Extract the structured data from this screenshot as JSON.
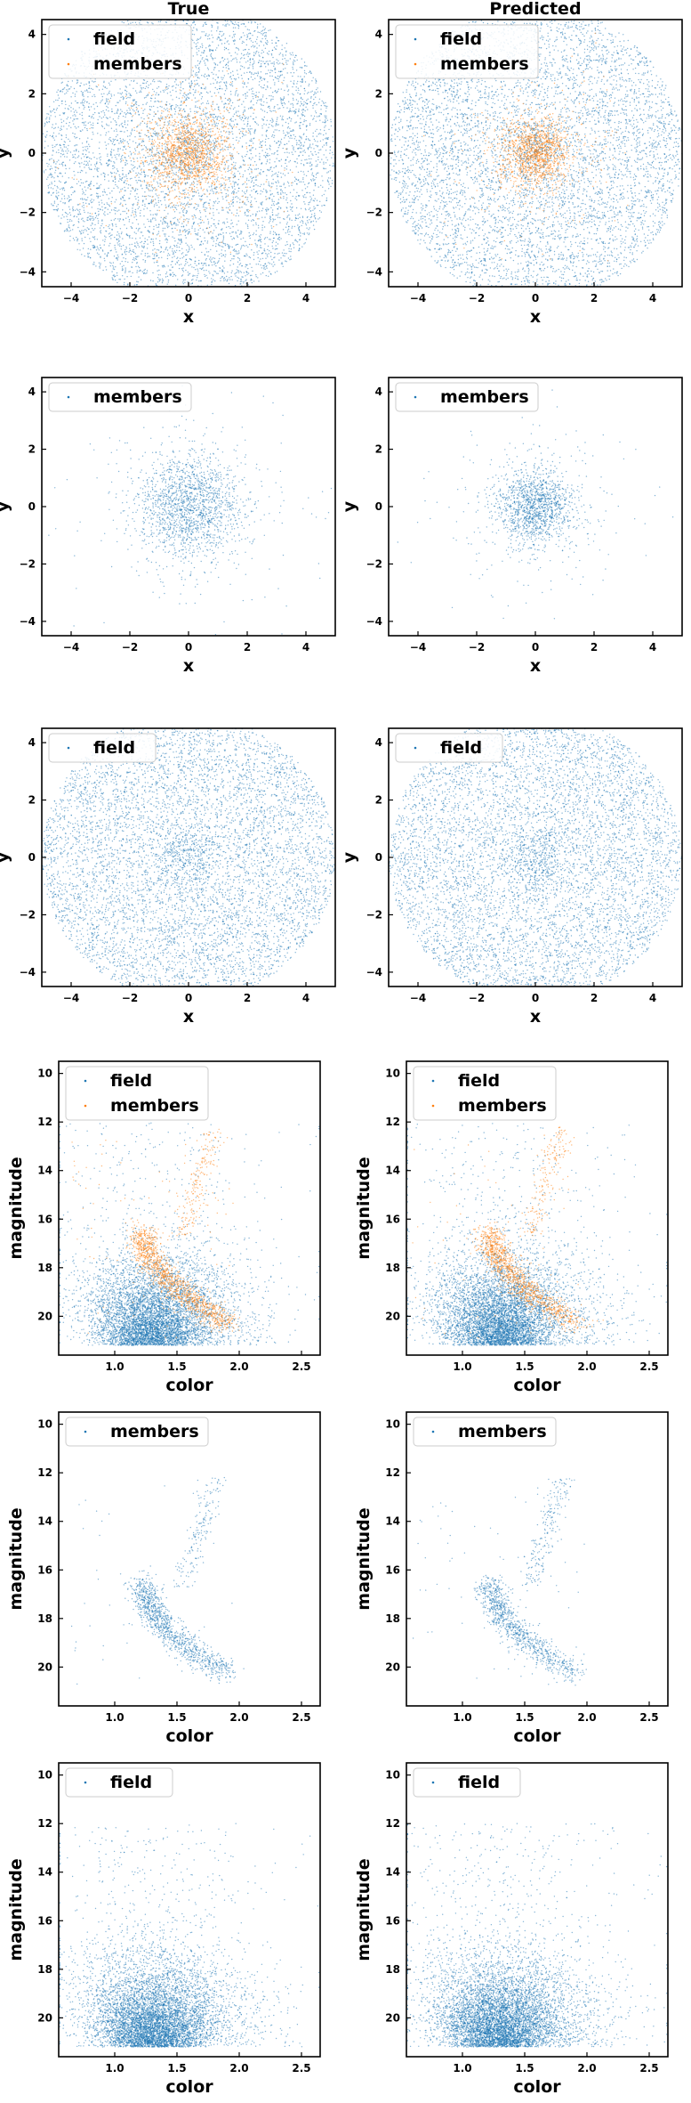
{
  "figure": {
    "column_titles": [
      "True",
      "Predicted"
    ],
    "colors": {
      "field": "#1f77b4",
      "members": "#ff7f0e"
    }
  },
  "chart_data": [
    {
      "type": "scatter",
      "title": "True",
      "xlabel": "x",
      "ylabel": "y",
      "xlim": [
        -5,
        5
      ],
      "ylim": [
        -4.5,
        4.5
      ],
      "xticks": [
        "-4",
        "-2",
        "0",
        "2",
        "4"
      ],
      "yticks": [
        "-4",
        "-2",
        "0",
        "2",
        "4"
      ],
      "legend": [
        "field",
        "members"
      ],
      "legend_position": "upper-left",
      "series": [
        {
          "name": "field",
          "color": "#1f77b4",
          "distribution": "uniform-disk",
          "center": [
            0,
            0
          ],
          "radius": 5,
          "approx_count": 6000
        },
        {
          "name": "members",
          "color": "#ff7f0e",
          "distribution": "gaussian-cluster",
          "center": [
            0,
            0
          ],
          "sigma": 0.7,
          "approx_count": 1500
        }
      ]
    },
    {
      "type": "scatter",
      "title": "Predicted",
      "xlabel": "x",
      "ylabel": "y",
      "xlim": [
        -5,
        5
      ],
      "ylim": [
        -4.5,
        4.5
      ],
      "xticks": [
        "-4",
        "-2",
        "0",
        "2",
        "4"
      ],
      "yticks": [
        "-4",
        "-2",
        "0",
        "2",
        "4"
      ],
      "legend": [
        "field",
        "members"
      ],
      "legend_position": "upper-left",
      "series": [
        {
          "name": "field",
          "color": "#1f77b4",
          "distribution": "uniform-disk",
          "center": [
            0,
            0
          ],
          "radius": 5,
          "approx_count": 6000
        },
        {
          "name": "members",
          "color": "#ff7f0e",
          "distribution": "gaussian-cluster",
          "center": [
            0,
            0
          ],
          "sigma": 0.6,
          "approx_count": 1400
        }
      ]
    },
    {
      "type": "scatter",
      "xlabel": "x",
      "ylabel": "y",
      "xlim": [
        -5,
        5
      ],
      "ylim": [
        -4.5,
        4.5
      ],
      "xticks": [
        "-4",
        "-2",
        "0",
        "2",
        "4"
      ],
      "yticks": [
        "-4",
        "-2",
        "0",
        "2",
        "4"
      ],
      "legend": [
        "members"
      ],
      "legend_position": "upper-left",
      "series": [
        {
          "name": "members",
          "color": "#1f77b4",
          "distribution": "gaussian-cluster",
          "center": [
            0,
            0
          ],
          "sigma": 0.9,
          "approx_count": 1800
        }
      ]
    },
    {
      "type": "scatter",
      "xlabel": "x",
      "ylabel": "y",
      "xlim": [
        -5,
        5
      ],
      "ylim": [
        -4.5,
        4.5
      ],
      "xticks": [
        "-4",
        "-2",
        "0",
        "2",
        "4"
      ],
      "yticks": [
        "-4",
        "-2",
        "0",
        "2",
        "4"
      ],
      "legend": [
        "members"
      ],
      "legend_position": "upper-left",
      "series": [
        {
          "name": "members",
          "color": "#1f77b4",
          "distribution": "gaussian-cluster",
          "center": [
            0,
            0
          ],
          "sigma": 0.65,
          "approx_count": 1500
        }
      ]
    },
    {
      "type": "scatter",
      "xlabel": "x",
      "ylabel": "y",
      "xlim": [
        -5,
        5
      ],
      "ylim": [
        -4.5,
        4.5
      ],
      "xticks": [
        "-4",
        "-2",
        "0",
        "2",
        "4"
      ],
      "yticks": [
        "-4",
        "-2",
        "0",
        "2",
        "4"
      ],
      "legend": [
        "field"
      ],
      "legend_position": "upper-left",
      "series": [
        {
          "name": "field",
          "color": "#1f77b4",
          "distribution": "uniform-disk",
          "center": [
            0,
            0
          ],
          "radius": 5,
          "approx_count": 6500
        }
      ]
    },
    {
      "type": "scatter",
      "xlabel": "x",
      "ylabel": "y",
      "xlim": [
        -5,
        5
      ],
      "ylim": [
        -4.5,
        4.5
      ],
      "xticks": [
        "-4",
        "-2",
        "0",
        "2",
        "4"
      ],
      "yticks": [
        "-4",
        "-2",
        "0",
        "2",
        "4"
      ],
      "legend": [
        "field"
      ],
      "legend_position": "upper-left",
      "series": [
        {
          "name": "field",
          "color": "#1f77b4",
          "distribution": "uniform-disk",
          "center": [
            0,
            0
          ],
          "radius": 5,
          "approx_count": 6500
        }
      ]
    },
    {
      "type": "scatter",
      "xlabel": "color",
      "ylabel": "magnitude",
      "xlim": [
        0.55,
        2.65
      ],
      "ylim": [
        21.6,
        9.5
      ],
      "xticks": [
        "1.0",
        "1.5",
        "2.0",
        "2.5"
      ],
      "yticks": [
        "10",
        "12",
        "14",
        "16",
        "18",
        "20"
      ],
      "legend": [
        "field",
        "members"
      ],
      "legend_position": "upper-left",
      "series": [
        {
          "name": "field",
          "color": "#1f77b4",
          "distribution": "cmd-field",
          "approx_count": 6000
        },
        {
          "name": "members",
          "color": "#ff7f0e",
          "distribution": "cmd-sequence",
          "approx_count": 1500
        }
      ]
    },
    {
      "type": "scatter",
      "xlabel": "color",
      "ylabel": "magnitude",
      "xlim": [
        0.55,
        2.65
      ],
      "ylim": [
        21.6,
        9.5
      ],
      "xticks": [
        "1.0",
        "1.5",
        "2.0",
        "2.5"
      ],
      "yticks": [
        "10",
        "12",
        "14",
        "16",
        "18",
        "20"
      ],
      "legend": [
        "field",
        "members"
      ],
      "legend_position": "upper-left",
      "series": [
        {
          "name": "field",
          "color": "#1f77b4",
          "distribution": "cmd-field",
          "approx_count": 6000
        },
        {
          "name": "members",
          "color": "#ff7f0e",
          "distribution": "cmd-sequence",
          "approx_count": 1400
        }
      ]
    },
    {
      "type": "scatter",
      "xlabel": "color",
      "ylabel": "magnitude",
      "xlim": [
        0.55,
        2.65
      ],
      "ylim": [
        21.6,
        9.5
      ],
      "xticks": [
        "1.0",
        "1.5",
        "2.0",
        "2.5"
      ],
      "yticks": [
        "10",
        "12",
        "14",
        "16",
        "18",
        "20"
      ],
      "legend": [
        "members"
      ],
      "legend_position": "upper-left",
      "series": [
        {
          "name": "members",
          "color": "#1f77b4",
          "distribution": "cmd-sequence",
          "approx_count": 1300
        }
      ]
    },
    {
      "type": "scatter",
      "xlabel": "color",
      "ylabel": "magnitude",
      "xlim": [
        0.55,
        2.65
      ],
      "ylim": [
        21.6,
        9.5
      ],
      "xticks": [
        "1.0",
        "1.5",
        "2.0",
        "2.5"
      ],
      "yticks": [
        "10",
        "12",
        "14",
        "16",
        "18",
        "20"
      ],
      "legend": [
        "members"
      ],
      "legend_position": "upper-left",
      "series": [
        {
          "name": "members",
          "color": "#1f77b4",
          "distribution": "cmd-sequence",
          "approx_count": 1200
        }
      ]
    },
    {
      "type": "scatter",
      "xlabel": "color",
      "ylabel": "magnitude",
      "xlim": [
        0.55,
        2.65
      ],
      "ylim": [
        21.6,
        9.5
      ],
      "xticks": [
        "1.0",
        "1.5",
        "2.0",
        "2.5"
      ],
      "yticks": [
        "10",
        "12",
        "14",
        "16",
        "18",
        "20"
      ],
      "legend": [
        "field"
      ],
      "legend_position": "upper-left",
      "series": [
        {
          "name": "field",
          "color": "#1f77b4",
          "distribution": "cmd-field",
          "approx_count": 6500
        }
      ]
    },
    {
      "type": "scatter",
      "xlabel": "color",
      "ylabel": "magnitude",
      "xlim": [
        0.55,
        2.65
      ],
      "ylim": [
        21.6,
        9.5
      ],
      "xticks": [
        "1.0",
        "1.5",
        "2.0",
        "2.5"
      ],
      "yticks": [
        "10",
        "12",
        "14",
        "16",
        "18",
        "20"
      ],
      "legend": [
        "field"
      ],
      "legend_position": "upper-left",
      "series": [
        {
          "name": "field",
          "color": "#1f77b4",
          "distribution": "cmd-field",
          "approx_count": 6500
        }
      ]
    }
  ]
}
